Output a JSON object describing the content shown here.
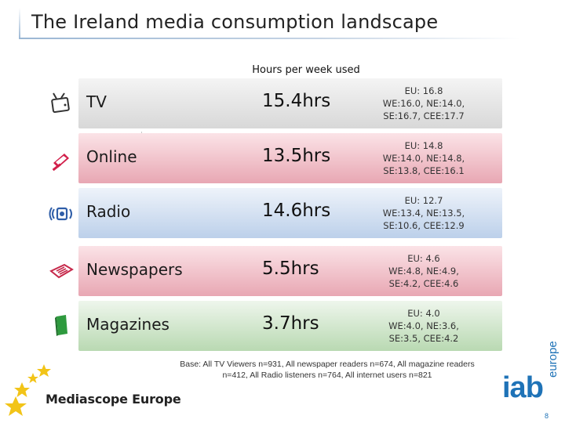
{
  "slide": {
    "title": "The Ireland media consumption landscape",
    "header": "Hours per week used",
    "page_number": "8"
  },
  "rows": [
    {
      "label": "TV",
      "value": "15.4hrs",
      "eu_lines": [
        "EU: 16.8",
        "WE:16.0, NE:14.0,",
        "SE:16.7, CEE:17.7"
      ],
      "icon": "tv-icon"
    },
    {
      "label": "Online",
      "value": "13.5hrs",
      "eu_lines": [
        "EU: 14.8",
        "WE:14.0, NE:14.8,",
        "SE:13.8, CEE:16.1"
      ],
      "icon": "laptop-icon"
    },
    {
      "label": "Radio",
      "value": "14.6hrs",
      "eu_lines": [
        "EU: 12.7",
        "WE:13.4, NE:13.5,",
        "SE:10.6, CEE:12.9"
      ],
      "icon": "radio-icon"
    },
    {
      "label": "Newspapers",
      "value": "5.5hrs",
      "eu_lines": [
        "EU: 4.6",
        "WE:4.8, NE:4.9,",
        "SE:4.2, CEE:4.6"
      ],
      "icon": "newspaper-icon"
    },
    {
      "label": "Magazines",
      "value": "3.7hrs",
      "eu_lines": [
        "EU: 4.0",
        "WE:4.0, NE:3.6,",
        "SE:3.5, CEE:4.2"
      ],
      "icon": "magazine-icon"
    }
  ],
  "footnote": "Base: All TV Viewers n=931, All newspaper readers n=674, All magazine readers n=412, All Radio listeners n=764, All internet users n=821",
  "logos": {
    "mediascope": "Mediascope Europe",
    "iab": "iab",
    "europe": "europe"
  },
  "colors": {
    "accent_blue": "#1f73b7",
    "star_yellow": "#f2c418"
  }
}
